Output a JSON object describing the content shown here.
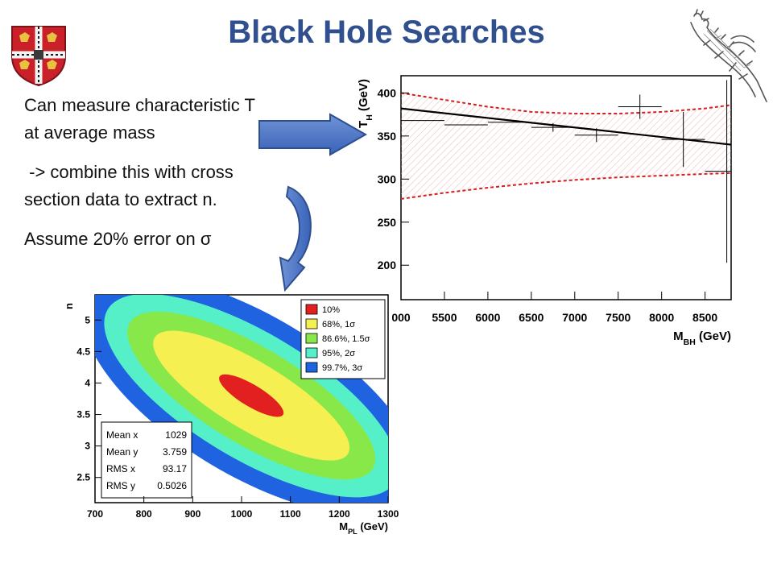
{
  "slide": {
    "title": "Black Hole Searches",
    "bullets": [
      "Can measure characteristic T",
      "at average mass",
      " -> combine this with cross",
      "section data to extract n.",
      "Assume 20% error on σ"
    ],
    "logos": [
      "cambridge-crest-icon",
      "crocodile-sketch-icon"
    ]
  },
  "chart_data": [
    {
      "type": "scatter",
      "title": "",
      "xlabel": "M_BH (GeV)",
      "ylabel": "T_H (GeV)",
      "xlim": [
        5000,
        8800
      ],
      "ylim": [
        160,
        420
      ],
      "x_ticks": [
        "000",
        "5500",
        "6000",
        "6500",
        "7000",
        "7500",
        "8000",
        "8500"
      ],
      "x_tick_values": [
        5000,
        5500,
        6000,
        6500,
        7000,
        7500,
        8000,
        8500
      ],
      "y_ticks": [
        "200",
        "250",
        "300",
        "350",
        "400"
      ],
      "y_tick_values": [
        200,
        250,
        300,
        350,
        400
      ],
      "grid": false,
      "points": [
        {
          "x": 5250,
          "y": 368,
          "xerr": 250,
          "yerr": 0
        },
        {
          "x": 5750,
          "y": 363,
          "xerr": 250,
          "yerr": 0
        },
        {
          "x": 6250,
          "y": 366,
          "xerr": 250,
          "yerr": 0
        },
        {
          "x": 6750,
          "y": 360,
          "xerr": 250,
          "yerr": 5
        },
        {
          "x": 7250,
          "y": 351,
          "xerr": 250,
          "yerr": 8
        },
        {
          "x": 7750,
          "y": 384,
          "xerr": 250,
          "yerr": 14
        },
        {
          "x": 8250,
          "y": 346,
          "xerr": 250,
          "yerr": 32
        },
        {
          "x": 8750,
          "y": 309,
          "xerr": 250,
          "yerr": 106
        }
      ],
      "fit_line": {
        "x": [
          5000,
          8800
        ],
        "y": [
          382,
          340
        ],
        "color": "#000000"
      },
      "band_upper": {
        "x": [
          5000,
          5500,
          6000,
          6500,
          7000,
          7500,
          8000,
          8500,
          8800
        ],
        "y": [
          400,
          392,
          384,
          378,
          376,
          376,
          378,
          382,
          386
        ],
        "color": "#d42020"
      },
      "band_lower": {
        "x": [
          5000,
          5500,
          6000,
          6500,
          7000,
          7500,
          8000,
          8500,
          8800
        ],
        "y": [
          277,
          284,
          290,
          295,
          299,
          302,
          304,
          306,
          307
        ],
        "color": "#d42020"
      }
    },
    {
      "type": "heatmap",
      "title": "",
      "xlabel": "M_PL (GeV)",
      "ylabel": "n",
      "xlim": [
        700,
        1300
      ],
      "ylim": [
        2.1,
        5.4
      ],
      "x_ticks": [
        "700",
        "800",
        "900",
        "1000",
        "1100",
        "1200",
        "1300"
      ],
      "x_tick_values": [
        700,
        800,
        900,
        1000,
        1100,
        1200,
        1300
      ],
      "y_ticks": [
        "2.5",
        "3",
        "3.5",
        "4",
        "4.5",
        "5"
      ],
      "y_tick_values": [
        2.5,
        3,
        3.5,
        4,
        4.5,
        5
      ],
      "center": {
        "x": 1020,
        "y": 3.8
      },
      "contours": [
        {
          "label": "99.7%, 3σ",
          "color": "#1f63e0",
          "hw": 5.9,
          "th": 0.33
        },
        {
          "label": "95%, 2σ",
          "color": "#55f0c8",
          "hw": 5.2,
          "th": 0.26
        },
        {
          "label": "86.6%, 1.5σ",
          "color": "#88e84a",
          "hw": 4.4,
          "th": 0.2
        },
        {
          "label": "68%, 1σ",
          "color": "#f5ef52",
          "hw": 3.5,
          "th": 0.14
        },
        {
          "label": "10%",
          "color": "#e32020",
          "hw": 1.15,
          "th": 0.045
        }
      ],
      "legend": {
        "position": "top-right",
        "entries": [
          {
            "label": "10%",
            "color": "#e32020"
          },
          {
            "label": "68%, 1σ",
            "color": "#f5ef52"
          },
          {
            "label": "86.6%, 1.5σ",
            "color": "#88e84a"
          },
          {
            "label": "95%, 2σ",
            "color": "#55f0c8"
          },
          {
            "label": "99.7%, 3σ",
            "color": "#1f63e0"
          }
        ]
      },
      "stats": [
        {
          "name": "Mean x",
          "value": "1029"
        },
        {
          "name": "Mean y",
          "value": "3.759"
        },
        {
          "name": "RMS x",
          "value": "93.17"
        },
        {
          "name": "RMS y",
          "value": "0.5026"
        }
      ]
    }
  ]
}
